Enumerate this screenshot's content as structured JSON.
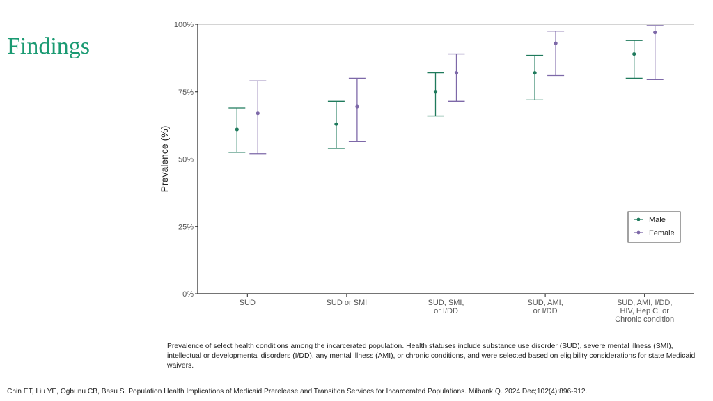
{
  "slide": {
    "title": "Findings",
    "caption": "Prevalence of select health conditions among the incarcerated population. Health statuses include substance use disorder (SUD), severe mental illness (SMI), intellectual or developmental disorders (I/DD), any mental illness (AMI), or chronic conditions, and were selected based on eligibility considerations for state Medicaid waivers.",
    "citation": "Chin ET, Liu YE, Ogbunu CB, Basu S. Population Health Implications of Medicaid Prerelease and Transition Services for Incarcerated Populations. Milbank Q. 2024 Dec;102(4):896-912."
  },
  "chart_data": {
    "type": "errorbar",
    "ylabel": "Prevalence (%)",
    "xlabel": "",
    "ylim": [
      0,
      100
    ],
    "yticks": [
      0,
      25,
      50,
      75,
      100
    ],
    "ytick_labels": [
      "0%",
      "25%",
      "50%",
      "75%",
      "100%"
    ],
    "categories": [
      [
        "SUD"
      ],
      [
        "SUD or SMI"
      ],
      [
        "SUD, SMI,",
        "or I/DD"
      ],
      [
        "SUD, AMI,",
        "or I/DD"
      ],
      [
        "SUD, AMI, I/DD,",
        "HIV, Hep C, or",
        "Chronic condition"
      ]
    ],
    "legend_position": "bottom-right",
    "grid": false,
    "series": [
      {
        "name": "Male",
        "color": "#1f7a5c",
        "values": [
          61,
          63,
          75,
          82,
          89
        ],
        "lower": [
          52.5,
          54,
          66,
          72,
          80
        ],
        "upper": [
          69,
          71.5,
          82,
          88.5,
          94
        ]
      },
      {
        "name": "Female",
        "color": "#7d68a8",
        "values": [
          67,
          69.5,
          82,
          93,
          97
        ],
        "lower": [
          52,
          56.5,
          71.5,
          81,
          79.5
        ],
        "upper": [
          79,
          80,
          89,
          97.5,
          99.5
        ]
      }
    ]
  }
}
